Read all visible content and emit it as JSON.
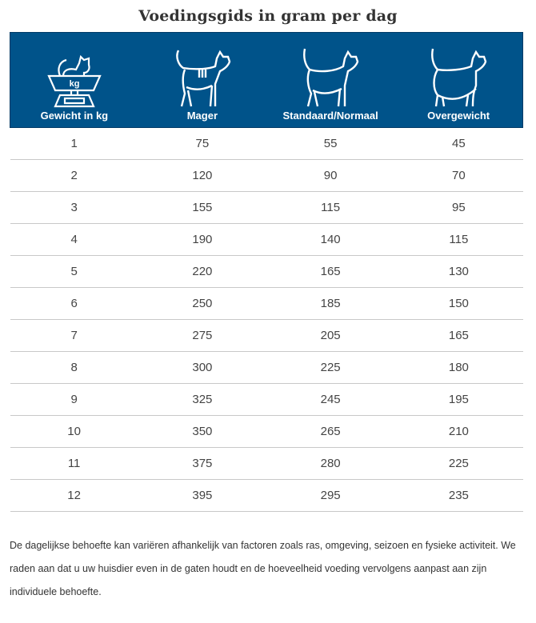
{
  "title": "Voedingsgids in gram per dag",
  "header_color": "#00538a",
  "columns": [
    {
      "label": "Gewicht in kg",
      "icon": "cat-on-scale-icon",
      "scale_label": "kg"
    },
    {
      "label": "Mager",
      "icon": "thin-cat-icon"
    },
    {
      "label": "Standaard/Normaal",
      "icon": "normal-cat-icon"
    },
    {
      "label": "Overgewicht",
      "icon": "overweight-cat-icon"
    }
  ],
  "rows": [
    [
      "1",
      "75",
      "55",
      "45"
    ],
    [
      "2",
      "120",
      "90",
      "70"
    ],
    [
      "3",
      "155",
      "115",
      "95"
    ],
    [
      "4",
      "190",
      "140",
      "115"
    ],
    [
      "5",
      "220",
      "165",
      "130"
    ],
    [
      "6",
      "250",
      "185",
      "150"
    ],
    [
      "7",
      "275",
      "205",
      "165"
    ],
    [
      "8",
      "300",
      "225",
      "180"
    ],
    [
      "9",
      "325",
      "245",
      "195"
    ],
    [
      "10",
      "350",
      "265",
      "210"
    ],
    [
      "11",
      "375",
      "280",
      "225"
    ],
    [
      "12",
      "395",
      "295",
      "235"
    ]
  ],
  "note": "De dagelijkse behoefte kan variëren afhankelijk van factoren zoals ras, omgeving, seizoen en fysieke activiteit. We raden aan dat u uw huisdier even in de gaten houdt en de hoeveelheid voeding vervolgens aanpast aan zijn individuele behoefte."
}
